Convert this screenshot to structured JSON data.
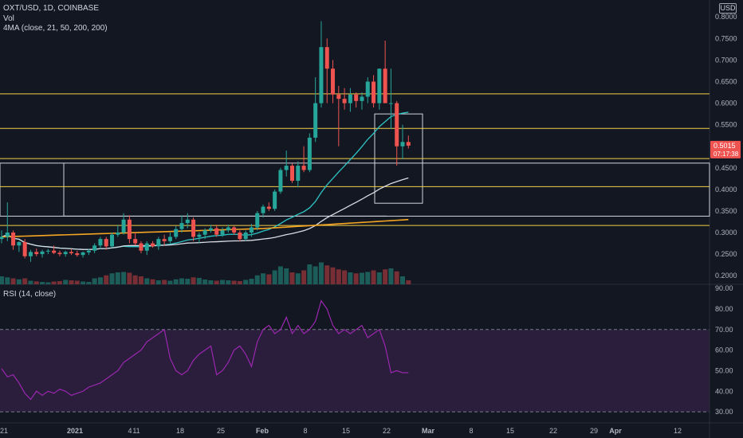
{
  "legend": {
    "symbol": "OXT/USD, 1D, COINBASE",
    "volume": "Vol",
    "ma": "4MA (close, 21, 50, 200, 200)",
    "rsi": "RSI (14, close)"
  },
  "currency_button": "USD",
  "price_axis": {
    "labels": [
      "0.8000",
      "0.7500",
      "0.7000",
      "0.6500",
      "0.6000",
      "0.5500",
      "0.5000",
      "0.4500",
      "0.4000",
      "0.3500",
      "0.3000",
      "0.2500",
      "0.2000"
    ],
    "current_price": "0.5015",
    "countdown": "07:17:38"
  },
  "rsi_axis": {
    "labels": [
      "90.00",
      "80.00",
      "70.00",
      "60.00",
      "50.00",
      "40.00",
      "30.00"
    ]
  },
  "time_axis": {
    "labels": [
      "21",
      "2021",
      "4",
      "11",
      "18",
      "25",
      "Feb",
      "8",
      "15",
      "22",
      "Mar",
      "8",
      "15",
      "22",
      "29",
      "Apr",
      "12"
    ]
  },
  "colors": {
    "background": "#131722",
    "up": "#26a69a",
    "down": "#ef5350",
    "support_line": "#f5d04a",
    "rsi_line": "#9c27b0",
    "rsi_band": "#2a1e3c",
    "ma_21": "#2ec4c4",
    "ma_50": "#d8dce3",
    "ma_200": "#f5a623"
  },
  "chart_data": {
    "type": "candlestick",
    "dates": [
      "2020-12-17",
      "2020-12-18",
      "2020-12-19",
      "2020-12-20",
      "2020-12-21",
      "2020-12-22",
      "2020-12-23",
      "2020-12-24",
      "2020-12-25",
      "2020-12-26",
      "2020-12-27",
      "2020-12-28",
      "2020-12-29",
      "2020-12-30",
      "2020-12-31",
      "2021-01-01",
      "2021-01-02",
      "2021-01-03",
      "2021-01-04",
      "2021-01-05",
      "2021-01-06",
      "2021-01-07",
      "2021-01-08",
      "2021-01-09",
      "2021-01-10",
      "2021-01-11",
      "2021-01-12",
      "2021-01-13",
      "2021-01-14",
      "2021-01-15",
      "2021-01-16",
      "2021-01-17",
      "2021-01-18",
      "2021-01-19",
      "2021-01-20",
      "2021-01-21",
      "2021-01-22",
      "2021-01-23",
      "2021-01-24",
      "2021-01-25",
      "2021-01-26",
      "2021-01-27",
      "2021-01-28",
      "2021-01-29",
      "2021-01-30",
      "2021-01-31",
      "2021-02-01",
      "2021-02-02",
      "2021-02-03",
      "2021-02-04",
      "2021-02-05",
      "2021-02-06",
      "2021-02-07",
      "2021-02-08",
      "2021-02-09",
      "2021-02-10",
      "2021-02-11",
      "2021-02-12",
      "2021-02-13",
      "2021-02-14",
      "2021-02-15",
      "2021-02-16",
      "2021-02-17",
      "2021-02-18",
      "2021-02-19",
      "2021-02-20",
      "2021-02-21",
      "2021-02-22",
      "2021-02-23",
      "2021-02-24",
      "2021-02-25"
    ],
    "ohlc": [
      [
        0.285,
        0.305,
        0.275,
        0.29
      ],
      [
        0.29,
        0.37,
        0.28,
        0.3
      ],
      [
        0.3,
        0.305,
        0.26,
        0.27
      ],
      [
        0.27,
        0.28,
        0.255,
        0.278
      ],
      [
        0.278,
        0.285,
        0.24,
        0.245
      ],
      [
        0.245,
        0.26,
        0.232,
        0.255
      ],
      [
        0.255,
        0.263,
        0.245,
        0.25
      ],
      [
        0.25,
        0.26,
        0.242,
        0.256
      ],
      [
        0.256,
        0.262,
        0.25,
        0.258
      ],
      [
        0.258,
        0.27,
        0.25,
        0.253
      ],
      [
        0.253,
        0.258,
        0.245,
        0.25
      ],
      [
        0.25,
        0.258,
        0.244,
        0.255
      ],
      [
        0.255,
        0.262,
        0.248,
        0.252
      ],
      [
        0.252,
        0.258,
        0.244,
        0.248
      ],
      [
        0.248,
        0.256,
        0.242,
        0.254
      ],
      [
        0.254,
        0.262,
        0.248,
        0.258
      ],
      [
        0.258,
        0.275,
        0.252,
        0.27
      ],
      [
        0.27,
        0.29,
        0.262,
        0.285
      ],
      [
        0.285,
        0.29,
        0.26,
        0.268
      ],
      [
        0.268,
        0.3,
        0.265,
        0.295
      ],
      [
        0.295,
        0.318,
        0.29,
        0.3
      ],
      [
        0.3,
        0.345,
        0.295,
        0.33
      ],
      [
        0.33,
        0.34,
        0.275,
        0.285
      ],
      [
        0.285,
        0.3,
        0.27,
        0.275
      ],
      [
        0.275,
        0.28,
        0.252,
        0.258
      ],
      [
        0.258,
        0.28,
        0.248,
        0.275
      ],
      [
        0.275,
        0.28,
        0.265,
        0.268
      ],
      [
        0.268,
        0.29,
        0.26,
        0.285
      ],
      [
        0.285,
        0.295,
        0.27,
        0.28
      ],
      [
        0.28,
        0.3,
        0.275,
        0.29
      ],
      [
        0.29,
        0.315,
        0.285,
        0.308
      ],
      [
        0.308,
        0.34,
        0.3,
        0.322
      ],
      [
        0.322,
        0.345,
        0.31,
        0.33
      ],
      [
        0.33,
        0.335,
        0.28,
        0.29
      ],
      [
        0.29,
        0.3,
        0.275,
        0.295
      ],
      [
        0.295,
        0.31,
        0.285,
        0.305
      ],
      [
        0.305,
        0.318,
        0.3,
        0.31
      ],
      [
        0.31,
        0.318,
        0.29,
        0.295
      ],
      [
        0.295,
        0.312,
        0.29,
        0.305
      ],
      [
        0.305,
        0.318,
        0.3,
        0.312
      ],
      [
        0.312,
        0.315,
        0.295,
        0.3
      ],
      [
        0.3,
        0.305,
        0.28,
        0.285
      ],
      [
        0.285,
        0.305,
        0.28,
        0.3
      ],
      [
        0.3,
        0.32,
        0.29,
        0.312
      ],
      [
        0.312,
        0.35,
        0.305,
        0.345
      ],
      [
        0.345,
        0.365,
        0.335,
        0.36
      ],
      [
        0.36,
        0.37,
        0.35,
        0.355
      ],
      [
        0.355,
        0.4,
        0.35,
        0.395
      ],
      [
        0.395,
        0.45,
        0.39,
        0.445
      ],
      [
        0.445,
        0.49,
        0.43,
        0.455
      ],
      [
        0.455,
        0.46,
        0.415,
        0.42
      ],
      [
        0.42,
        0.465,
        0.405,
        0.455
      ],
      [
        0.455,
        0.5,
        0.44,
        0.445
      ],
      [
        0.445,
        0.53,
        0.44,
        0.52
      ],
      [
        0.52,
        0.66,
        0.51,
        0.6
      ],
      [
        0.6,
        0.79,
        0.59,
        0.73
      ],
      [
        0.73,
        0.75,
        0.6,
        0.68
      ],
      [
        0.68,
        0.7,
        0.6,
        0.62
      ],
      [
        0.62,
        0.64,
        0.5,
        0.61
      ],
      [
        0.61,
        0.635,
        0.585,
        0.6
      ],
      [
        0.6,
        0.635,
        0.58,
        0.62
      ],
      [
        0.62,
        0.625,
        0.59,
        0.605
      ],
      [
        0.605,
        0.625,
        0.585,
        0.615
      ],
      [
        0.615,
        0.66,
        0.6,
        0.65
      ],
      [
        0.65,
        0.665,
        0.59,
        0.6
      ],
      [
        0.6,
        0.68,
        0.585,
        0.68
      ],
      [
        0.68,
        0.745,
        0.6,
        0.6
      ],
      [
        0.6,
        0.68,
        0.54,
        0.6
      ],
      [
        0.6,
        0.605,
        0.455,
        0.5
      ],
      [
        0.5,
        0.55,
        0.47,
        0.51
      ],
      [
        0.51,
        0.525,
        0.495,
        0.5015
      ]
    ],
    "volume_direction": "up bars teal, down bars red",
    "support_resistance_lines": [
      0.6215,
      0.5415,
      0.4715,
      0.4065,
      0.3165
    ],
    "ranges": {
      "price": [
        0.18,
        0.83
      ],
      "rsi": [
        25,
        92
      ]
    },
    "rsi": [
      51,
      47,
      48,
      44,
      39,
      36,
      40,
      38,
      40,
      39,
      41,
      40,
      38,
      39,
      40,
      42,
      43,
      44,
      46,
      48,
      50,
      54,
      56,
      58,
      60,
      64,
      66,
      68,
      70,
      56,
      50,
      48,
      50,
      55,
      58,
      60,
      62,
      48,
      50,
      54,
      60,
      62,
      58,
      52,
      64,
      70,
      72,
      68,
      70,
      76,
      68,
      72,
      68,
      70,
      74,
      84,
      80,
      72,
      68,
      70,
      68,
      70,
      72,
      66,
      68,
      70,
      62,
      49,
      50,
      49,
      49
    ],
    "ma_lines": [
      "21",
      "50",
      "200",
      "200"
    ]
  }
}
